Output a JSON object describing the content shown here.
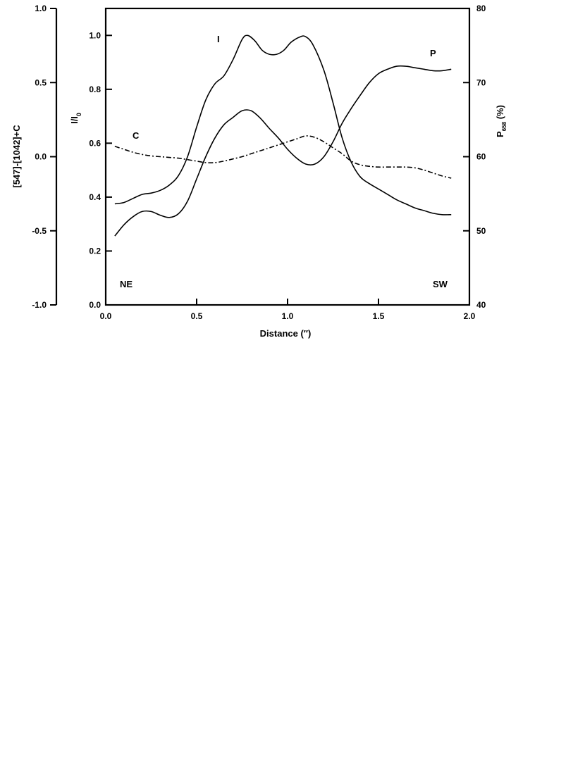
{
  "chart_data": {
    "type": "line",
    "xlabel": "Distance (″)",
    "xlim": [
      0.0,
      2.0
    ],
    "x_ticks": [
      "0.0",
      "0.5",
      "1.0",
      "1.5",
      "2.0"
    ],
    "axes": {
      "left_outer": {
        "label": "[547]-[1042]+C",
        "lim": [
          -1.0,
          1.0
        ],
        "ticks": [
          "-1.0",
          "-0.5",
          "0.0",
          "0.5",
          "1.0"
        ]
      },
      "left_inner": {
        "label_main": "I/I",
        "label_sub": "0",
        "lim": [
          0.0,
          1.1
        ],
        "ticks": [
          "0.0",
          "0.2",
          "0.4",
          "0.6",
          "0.8",
          "1.0"
        ]
      },
      "right": {
        "label_main": "P",
        "label_sub": "658",
        "label_suffix": " (%)",
        "lim": [
          40,
          80
        ],
        "ticks": [
          "40",
          "50",
          "60",
          "70",
          "80"
        ]
      }
    },
    "series": [
      {
        "name": "I",
        "axis": "left_inner",
        "style": "solid",
        "points": [
          [
            0.05,
            0.375
          ],
          [
            0.1,
            0.38
          ],
          [
            0.15,
            0.395
          ],
          [
            0.2,
            0.41
          ],
          [
            0.25,
            0.415
          ],
          [
            0.3,
            0.425
          ],
          [
            0.35,
            0.445
          ],
          [
            0.4,
            0.48
          ],
          [
            0.45,
            0.55
          ],
          [
            0.5,
            0.66
          ],
          [
            0.55,
            0.76
          ],
          [
            0.6,
            0.82
          ],
          [
            0.65,
            0.85
          ],
          [
            0.7,
            0.91
          ],
          [
            0.75,
            0.985
          ],
          [
            0.78,
            1.0
          ],
          [
            0.82,
            0.98
          ],
          [
            0.86,
            0.945
          ],
          [
            0.9,
            0.93
          ],
          [
            0.94,
            0.93
          ],
          [
            0.98,
            0.945
          ],
          [
            1.02,
            0.975
          ],
          [
            1.07,
            0.995
          ],
          [
            1.1,
            0.995
          ],
          [
            1.14,
            0.965
          ],
          [
            1.2,
            0.87
          ],
          [
            1.25,
            0.75
          ],
          [
            1.3,
            0.62
          ],
          [
            1.35,
            0.53
          ],
          [
            1.4,
            0.475
          ],
          [
            1.45,
            0.45
          ],
          [
            1.5,
            0.43
          ],
          [
            1.55,
            0.41
          ],
          [
            1.6,
            0.39
          ],
          [
            1.65,
            0.375
          ],
          [
            1.7,
            0.36
          ],
          [
            1.75,
            0.35
          ],
          [
            1.8,
            0.34
          ],
          [
            1.85,
            0.335
          ],
          [
            1.9,
            0.335
          ]
        ]
      },
      {
        "name": "P",
        "axis": "right",
        "style": "solid",
        "points": [
          [
            0.05,
            49.3
          ],
          [
            0.1,
            50.8
          ],
          [
            0.15,
            51.9
          ],
          [
            0.2,
            52.6
          ],
          [
            0.25,
            52.6
          ],
          [
            0.3,
            52.1
          ],
          [
            0.35,
            51.8
          ],
          [
            0.4,
            52.3
          ],
          [
            0.45,
            54.0
          ],
          [
            0.5,
            57.0
          ],
          [
            0.55,
            60.0
          ],
          [
            0.6,
            62.5
          ],
          [
            0.65,
            64.3
          ],
          [
            0.7,
            65.3
          ],
          [
            0.75,
            66.2
          ],
          [
            0.8,
            66.2
          ],
          [
            0.85,
            65.2
          ],
          [
            0.9,
            63.8
          ],
          [
            0.95,
            62.5
          ],
          [
            1.0,
            61.0
          ],
          [
            1.05,
            59.8
          ],
          [
            1.1,
            59.0
          ],
          [
            1.15,
            59.0
          ],
          [
            1.2,
            60.0
          ],
          [
            1.25,
            62.0
          ],
          [
            1.3,
            64.5
          ],
          [
            1.35,
            66.5
          ],
          [
            1.4,
            68.3
          ],
          [
            1.45,
            70.0
          ],
          [
            1.5,
            71.2
          ],
          [
            1.55,
            71.8
          ],
          [
            1.6,
            72.2
          ],
          [
            1.65,
            72.2
          ],
          [
            1.7,
            72.0
          ],
          [
            1.75,
            71.8
          ],
          [
            1.8,
            71.6
          ],
          [
            1.85,
            71.6
          ],
          [
            1.9,
            71.8
          ]
        ]
      },
      {
        "name": "C",
        "axis": "left_outer",
        "style": "dash-dot",
        "points": [
          [
            0.05,
            0.07
          ],
          [
            0.1,
            0.05
          ],
          [
            0.15,
            0.03
          ],
          [
            0.2,
            0.015
          ],
          [
            0.25,
            0.005
          ],
          [
            0.3,
            0.0
          ],
          [
            0.35,
            -0.005
          ],
          [
            0.4,
            -0.01
          ],
          [
            0.45,
            -0.02
          ],
          [
            0.5,
            -0.03
          ],
          [
            0.55,
            -0.04
          ],
          [
            0.6,
            -0.04
          ],
          [
            0.65,
            -0.03
          ],
          [
            0.7,
            -0.015
          ],
          [
            0.75,
            0.0
          ],
          [
            0.8,
            0.02
          ],
          [
            0.85,
            0.04
          ],
          [
            0.9,
            0.06
          ],
          [
            0.95,
            0.08
          ],
          [
            1.0,
            0.1
          ],
          [
            1.05,
            0.12
          ],
          [
            1.1,
            0.14
          ],
          [
            1.15,
            0.13
          ],
          [
            1.2,
            0.1
          ],
          [
            1.25,
            0.06
          ],
          [
            1.3,
            0.02
          ],
          [
            1.35,
            -0.03
          ],
          [
            1.4,
            -0.055
          ],
          [
            1.45,
            -0.065
          ],
          [
            1.5,
            -0.07
          ],
          [
            1.55,
            -0.07
          ],
          [
            1.6,
            -0.07
          ],
          [
            1.65,
            -0.07
          ],
          [
            1.7,
            -0.075
          ],
          [
            1.75,
            -0.09
          ],
          [
            1.8,
            -0.11
          ],
          [
            1.85,
            -0.13
          ],
          [
            1.9,
            -0.145
          ]
        ]
      }
    ],
    "annotations": {
      "ne": "NE",
      "sw": "SW"
    }
  }
}
